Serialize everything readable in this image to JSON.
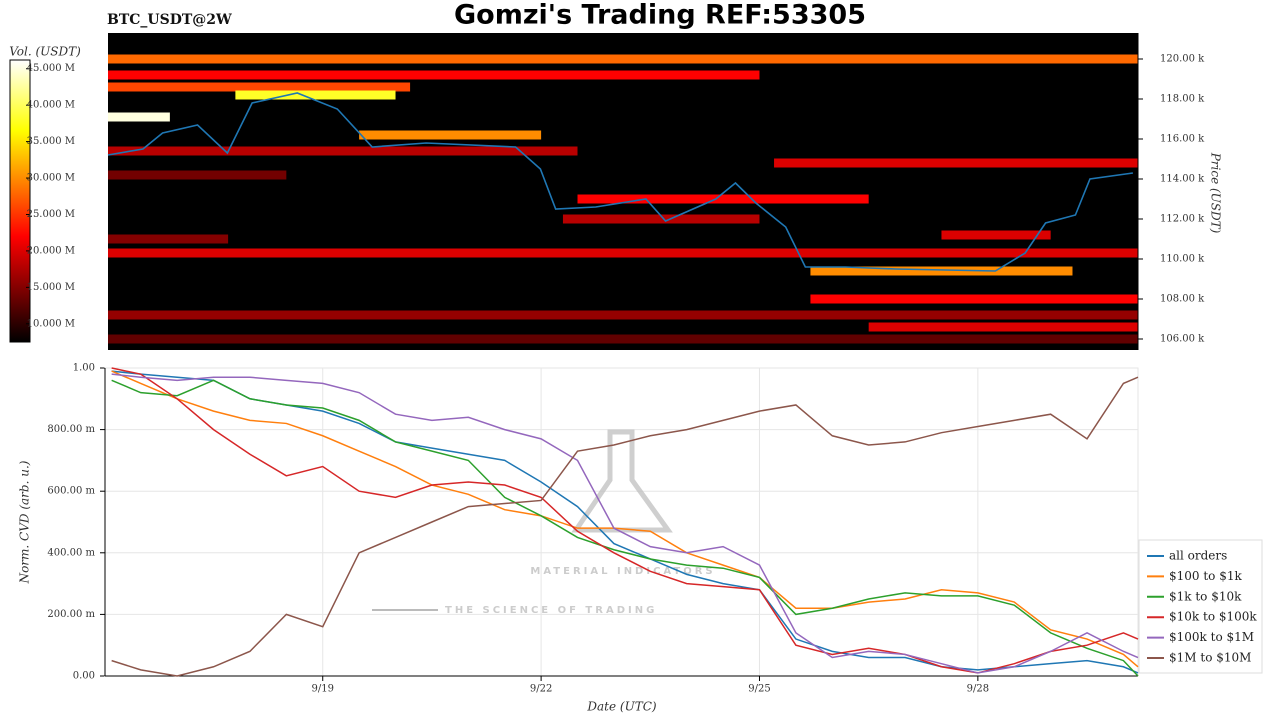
{
  "chart_data": [
    {
      "type": "heatmap",
      "title": "Gomzi's Trading REF:53305",
      "subtitle": "BTC_USDT@2W",
      "y_label": "Price (USDT)",
      "colorbar_label": "Vol. (USDT)",
      "colormap": "hot",
      "xlim": [
        16.05,
        30.2
      ],
      "ylim": [
        105450,
        121300
      ],
      "yticks": [
        {
          "value": 106000,
          "label": "106.00 k"
        },
        {
          "value": 108000,
          "label": "108.00 k"
        },
        {
          "value": 110000,
          "label": "110.00 k"
        },
        {
          "value": 112000,
          "label": "112.00 k"
        },
        {
          "value": 114000,
          "label": "114.00 k"
        },
        {
          "value": 116000,
          "label": "116.00 k"
        },
        {
          "value": 118000,
          "label": "118.00 k"
        },
        {
          "value": 120000,
          "label": "120.00 k"
        }
      ],
      "clim": [
        7500000,
        46200000
      ],
      "cticks": [
        {
          "value": 10000000,
          "label": "10.000 M"
        },
        {
          "value": 15000000,
          "label": "15.000 M"
        },
        {
          "value": 20000000,
          "label": "20.000 M"
        },
        {
          "value": 25000000,
          "label": "25.000 M"
        },
        {
          "value": 30000000,
          "label": "30.000 M"
        },
        {
          "value": 35000000,
          "label": "35.000 M"
        },
        {
          "value": 40000000,
          "label": "40.000 M"
        },
        {
          "value": 45000000,
          "label": "45.000 M"
        }
      ],
      "cells": [
        {
          "x": [
            16.05,
            30.2
          ],
          "y": 120000,
          "value": 28000000
        },
        {
          "x": [
            16.05,
            25.0
          ],
          "y": 119200,
          "value": 22000000
        },
        {
          "x": [
            16.05,
            20.2
          ],
          "y": 118600,
          "value": 26000000
        },
        {
          "x": [
            17.8,
            20.0
          ],
          "y": 118200,
          "value": 38000000
        },
        {
          "x": [
            16.05,
            16.9
          ],
          "y": 117100,
          "value": 45000000
        },
        {
          "x": [
            19.5,
            22.0
          ],
          "y": 116200,
          "value": 30000000
        },
        {
          "x": [
            16.05,
            22.5
          ],
          "y": 115400,
          "value": 18000000
        },
        {
          "x": [
            25.2,
            30.2
          ],
          "y": 114800,
          "value": 20000000
        },
        {
          "x": [
            16.05,
            18.5
          ],
          "y": 114200,
          "value": 14000000
        },
        {
          "x": [
            22.5,
            26.5
          ],
          "y": 113000,
          "value": 22000000
        },
        {
          "x": [
            22.3,
            25.0
          ],
          "y": 112000,
          "value": 18000000
        },
        {
          "x": [
            27.5,
            29.0
          ],
          "y": 111200,
          "value": 20000000
        },
        {
          "x": [
            16.05,
            17.7
          ],
          "y": 111000,
          "value": 15000000
        },
        {
          "x": [
            16.05,
            30.2
          ],
          "y": 110300,
          "value": 20000000
        },
        {
          "x": [
            25.7,
            29.3
          ],
          "y": 109400,
          "value": 30000000
        },
        {
          "x": [
            25.7,
            30.2
          ],
          "y": 108000,
          "value": 22000000
        },
        {
          "x": [
            16.05,
            30.2
          ],
          "y": 107200,
          "value": 16000000
        },
        {
          "x": [
            26.5,
            30.2
          ],
          "y": 106600,
          "value": 20000000
        },
        {
          "x": [
            16.05,
            30.2
          ],
          "y": 106000,
          "value": 13000000
        }
      ],
      "line": {
        "color": "#1f77b4",
        "x": [
          16.05,
          16.53,
          16.8,
          17.28,
          17.69,
          18.03,
          18.65,
          19.2,
          19.68,
          20.42,
          21.65,
          21.99,
          22.2,
          22.75,
          23.44,
          23.71,
          24.4,
          24.67,
          24.95,
          25.36,
          25.63,
          26.18,
          26.87,
          28.24,
          28.65,
          28.93,
          29.34,
          29.54,
          30.13
        ],
        "values": [
          115200,
          115500,
          116300,
          116700,
          115300,
          117800,
          118300,
          117500,
          115600,
          115800,
          115600,
          114500,
          112500,
          112600,
          113000,
          111900,
          113000,
          113800,
          112800,
          111600,
          109600,
          109600,
          109500,
          109400,
          110300,
          111800,
          112200,
          114000,
          114300
        ]
      }
    },
    {
      "type": "line",
      "y_label": "Norm. CVD (arb. u.)",
      "x_label": "Date (UTC)",
      "xlim": [
        16.05,
        30.2
      ],
      "ylim": [
        0,
        1
      ],
      "xticks": [
        {
          "value": 19,
          "label": "9/19"
        },
        {
          "value": 22,
          "label": "9/22"
        },
        {
          "value": 25,
          "label": "9/25"
        },
        {
          "value": 28,
          "label": "9/28"
        }
      ],
      "yticks": [
        {
          "value": 0,
          "label": "0.00"
        },
        {
          "value": 0.2,
          "label": "200.00 m"
        },
        {
          "value": 0.4,
          "label": "400.00 m"
        },
        {
          "value": 0.6,
          "label": "600.00 m"
        },
        {
          "value": 0.8,
          "label": "800.00 m"
        },
        {
          "value": 1,
          "label": "1.00"
        }
      ],
      "grid": true,
      "legend": "right",
      "annotations": [
        "MATERIAL INDICATORS",
        "THE SCIENCE OF TRADING"
      ],
      "x": [
        16.1,
        16.5,
        17,
        17.5,
        18,
        18.5,
        19,
        19.5,
        20,
        20.5,
        21,
        21.5,
        22,
        22.5,
        23,
        23.5,
        24,
        24.5,
        25,
        25.5,
        26,
        26.5,
        27,
        27.5,
        28,
        28.5,
        29,
        29.5,
        30,
        30.2
      ],
      "series": [
        {
          "name": "all orders",
          "color": "#1f77b4",
          "values": [
            0.99,
            0.98,
            0.97,
            0.96,
            0.9,
            0.88,
            0.86,
            0.82,
            0.76,
            0.74,
            0.72,
            0.7,
            0.63,
            0.55,
            0.43,
            0.38,
            0.33,
            0.3,
            0.28,
            0.12,
            0.08,
            0.06,
            0.06,
            0.03,
            0.02,
            0.03,
            0.04,
            0.05,
            0.03,
            0.01
          ]
        },
        {
          "name": "$100 to $1k",
          "color": "#ff7f0e",
          "values": [
            0.99,
            0.95,
            0.9,
            0.86,
            0.83,
            0.82,
            0.78,
            0.73,
            0.68,
            0.62,
            0.59,
            0.54,
            0.52,
            0.48,
            0.48,
            0.47,
            0.4,
            0.36,
            0.32,
            0.22,
            0.22,
            0.24,
            0.25,
            0.28,
            0.27,
            0.24,
            0.15,
            0.12,
            0.07,
            0.03
          ]
        },
        {
          "name": "$1k to $10k",
          "color": "#2ca02c",
          "values": [
            0.96,
            0.92,
            0.91,
            0.96,
            0.9,
            0.88,
            0.87,
            0.83,
            0.76,
            0.73,
            0.7,
            0.58,
            0.52,
            0.45,
            0.41,
            0.38,
            0.36,
            0.35,
            0.32,
            0.2,
            0.22,
            0.25,
            0.27,
            0.26,
            0.26,
            0.23,
            0.14,
            0.09,
            0.05,
            0.0
          ]
        },
        {
          "name": "$10k to $100k",
          "color": "#d62728",
          "values": [
            1.0,
            0.98,
            0.9,
            0.8,
            0.72,
            0.65,
            0.68,
            0.6,
            0.58,
            0.62,
            0.63,
            0.62,
            0.58,
            0.47,
            0.4,
            0.34,
            0.3,
            0.29,
            0.28,
            0.1,
            0.07,
            0.09,
            0.07,
            0.03,
            0.01,
            0.04,
            0.08,
            0.1,
            0.14,
            0.12
          ]
        },
        {
          "name": "$100k to $1M",
          "color": "#9467bd",
          "values": [
            0.98,
            0.97,
            0.96,
            0.97,
            0.97,
            0.96,
            0.95,
            0.92,
            0.85,
            0.83,
            0.84,
            0.8,
            0.77,
            0.7,
            0.48,
            0.42,
            0.4,
            0.42,
            0.36,
            0.14,
            0.06,
            0.08,
            0.07,
            0.04,
            0.01,
            0.03,
            0.08,
            0.14,
            0.08,
            0.06
          ]
        },
        {
          "name": "$1M to $10M",
          "color": "#8c564b",
          "values": [
            0.05,
            0.02,
            0.0,
            0.03,
            0.08,
            0.2,
            0.16,
            0.4,
            0.45,
            0.5,
            0.55,
            0.56,
            0.57,
            0.73,
            0.75,
            0.78,
            0.8,
            0.83,
            0.86,
            0.88,
            0.78,
            0.75,
            0.76,
            0.79,
            0.81,
            0.83,
            0.85,
            0.77,
            0.95,
            0.97
          ]
        }
      ]
    }
  ]
}
